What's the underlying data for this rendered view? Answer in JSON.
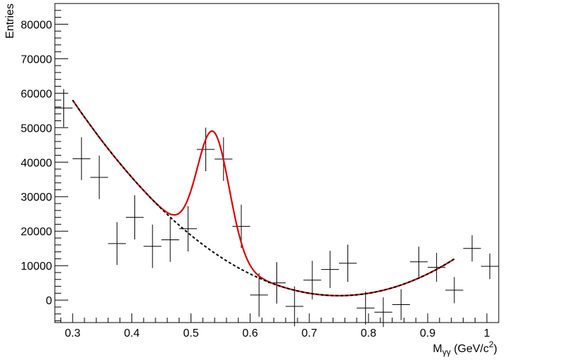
{
  "chart_data": {
    "type": "scatter",
    "title": "",
    "xlabel": "M",
    "xlabel_sub": "γγ",
    "xlabel_unit_pre": " (GeV/c",
    "xlabel_unit_sup": "2",
    "xlabel_unit_post": ")",
    "ylabel": "Entries",
    "xlim": [
      0.27,
      1.02
    ],
    "ylim": [
      -6500,
      86000
    ],
    "x_ticks": [
      "0.3",
      "0.4",
      "0.5",
      "0.6",
      "0.7",
      "0.8",
      "0.9",
      "1"
    ],
    "x_tick_values": [
      0.3,
      0.4,
      0.5,
      0.6,
      0.7,
      0.8,
      0.9,
      1.0
    ],
    "y_ticks": [
      "0",
      "10000",
      "20000",
      "30000",
      "40000",
      "50000",
      "60000",
      "70000",
      "80000"
    ],
    "y_tick_values": [
      0,
      10000,
      20000,
      30000,
      40000,
      50000,
      60000,
      70000,
      80000
    ],
    "bin_width": 0.03,
    "data_points": [
      {
        "x": 0.285,
        "y": 55700,
        "err": 5500
      },
      {
        "x": 0.315,
        "y": 41000,
        "err": 6200
      },
      {
        "x": 0.345,
        "y": 35600,
        "err": 6300
      },
      {
        "x": 0.375,
        "y": 16400,
        "err": 6200
      },
      {
        "x": 0.405,
        "y": 24000,
        "err": 6400
      },
      {
        "x": 0.435,
        "y": 15600,
        "err": 6300
      },
      {
        "x": 0.465,
        "y": 17500,
        "err": 6400
      },
      {
        "x": 0.495,
        "y": 20700,
        "err": 6600
      },
      {
        "x": 0.525,
        "y": 43700,
        "err": 6300
      },
      {
        "x": 0.555,
        "y": 40900,
        "err": 6300
      },
      {
        "x": 0.585,
        "y": 21400,
        "err": 6300
      },
      {
        "x": 0.615,
        "y": 1500,
        "err": 6300
      },
      {
        "x": 0.645,
        "y": 5000,
        "err": 6000
      },
      {
        "x": 0.675,
        "y": -1800,
        "err": 5800
      },
      {
        "x": 0.705,
        "y": 5800,
        "err": 5600
      },
      {
        "x": 0.735,
        "y": 8900,
        "err": 5400
      },
      {
        "x": 0.765,
        "y": 10700,
        "err": 5400
      },
      {
        "x": 0.795,
        "y": -2300,
        "err": 4800
      },
      {
        "x": 0.825,
        "y": -3500,
        "err": 4300
      },
      {
        "x": 0.855,
        "y": -1300,
        "err": 4500
      },
      {
        "x": 0.885,
        "y": 11100,
        "err": 4400
      },
      {
        "x": 0.915,
        "y": 9500,
        "err": 4200
      },
      {
        "x": 0.945,
        "y": 2900,
        "err": 3800
      },
      {
        "x": 0.975,
        "y": 15000,
        "err": 3800
      },
      {
        "x": 1.005,
        "y": 9800,
        "err": 3700
      }
    ],
    "background_model": {
      "type": "quadratic",
      "x_range": [
        0.3,
        0.945
      ],
      "coefficients": [
        1300,
        280000,
        0.75
      ],
      "style": "dashed",
      "color": "#000000"
    },
    "total_fit": {
      "x_range": [
        0.3,
        0.945
      ],
      "gaussian": {
        "amplitude": 35000,
        "mean": 0.538,
        "sigma": 0.027
      },
      "color": "#e00000"
    }
  }
}
